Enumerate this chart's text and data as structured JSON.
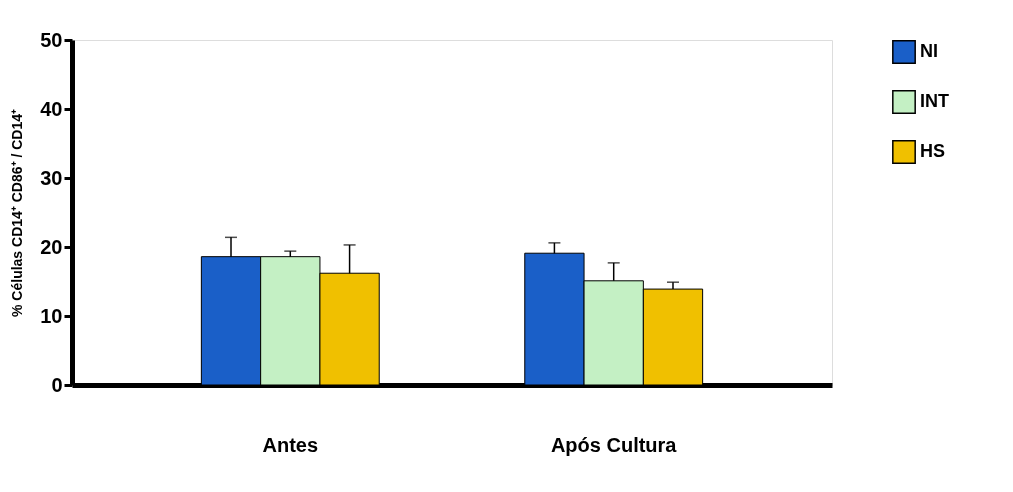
{
  "chart_data": {
    "type": "bar",
    "ylabel": "% Células CD14⁺ CD86⁺ / CD14⁺",
    "categories": [
      "Antes",
      "Após Cultura"
    ],
    "series": [
      {
        "name": "NI",
        "color": "#1a5fc8",
        "values": [
          18.6,
          19.1
        ],
        "errors": [
          2.8,
          1.5
        ]
      },
      {
        "name": "INT",
        "color": "#c4f0c4",
        "values": [
          18.6,
          15.1
        ],
        "errors": [
          0.8,
          2.6
        ]
      },
      {
        "name": "HS",
        "color": "#f0c000",
        "values": [
          16.2,
          13.9
        ],
        "errors": [
          4.1,
          1.0
        ]
      }
    ],
    "ylim": [
      0,
      50
    ],
    "yticks": [
      0,
      10,
      20,
      30,
      40,
      50
    ],
    "grid": false,
    "legend": "top right"
  }
}
